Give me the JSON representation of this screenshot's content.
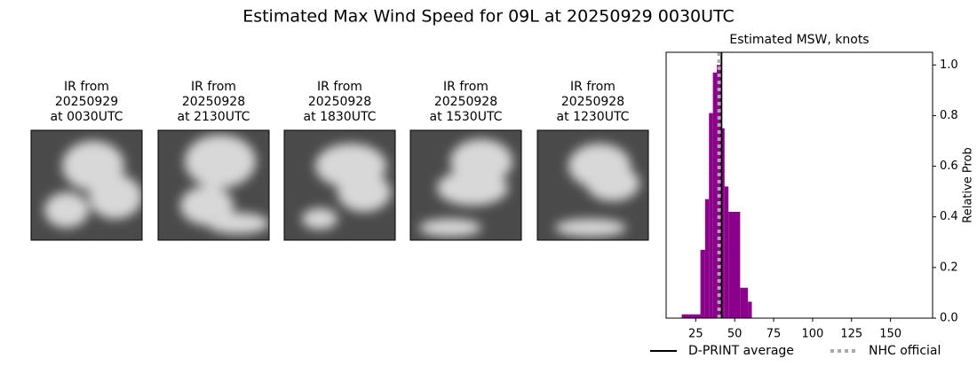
{
  "title": "Estimated Max Wind Speed for 09L at 20250929 0030UTC",
  "panels": [
    [
      "IR from",
      "20250929",
      "at 0030UTC"
    ],
    [
      "IR from",
      "20250928",
      "at 2130UTC"
    ],
    [
      "IR from",
      "20250928",
      "at 1830UTC"
    ],
    [
      "IR from",
      "20250928",
      "at 1530UTC"
    ],
    [
      "IR from",
      "20250928",
      "at 1230UTC"
    ]
  ],
  "chart_data": {
    "type": "histogram",
    "title": "Estimated MSW, knots",
    "y_label": "Relative Prob",
    "y_axis_side": "right",
    "color": "#8b008b",
    "bins": [
      16,
      28,
      31,
      33.5,
      36,
      38.5,
      41,
      43.5,
      46,
      53.5,
      58.5,
      61
    ],
    "values": [
      0.015,
      0.27,
      0.47,
      0.81,
      0.97,
      1.0,
      0.75,
      0.52,
      0.42,
      0.12,
      0.065
    ],
    "xlim": [
      6,
      177
    ],
    "ylim": [
      0,
      1.05
    ],
    "xticks": [
      25,
      50,
      75,
      100,
      125,
      150
    ],
    "yticks": [
      {
        "value": 0,
        "label": "0.0"
      },
      0.2,
      0.4,
      0.6,
      0.8,
      {
        "value": 1,
        "label": "1.0"
      }
    ],
    "reference_lines": [
      {
        "name": "D-PRINT average",
        "value": 41.5,
        "color": "#000000",
        "style": "solid"
      },
      {
        "name": "NHC official",
        "value": 40,
        "color": "#aaaaaa",
        "style": "dotted"
      }
    ],
    "legend": "below"
  }
}
